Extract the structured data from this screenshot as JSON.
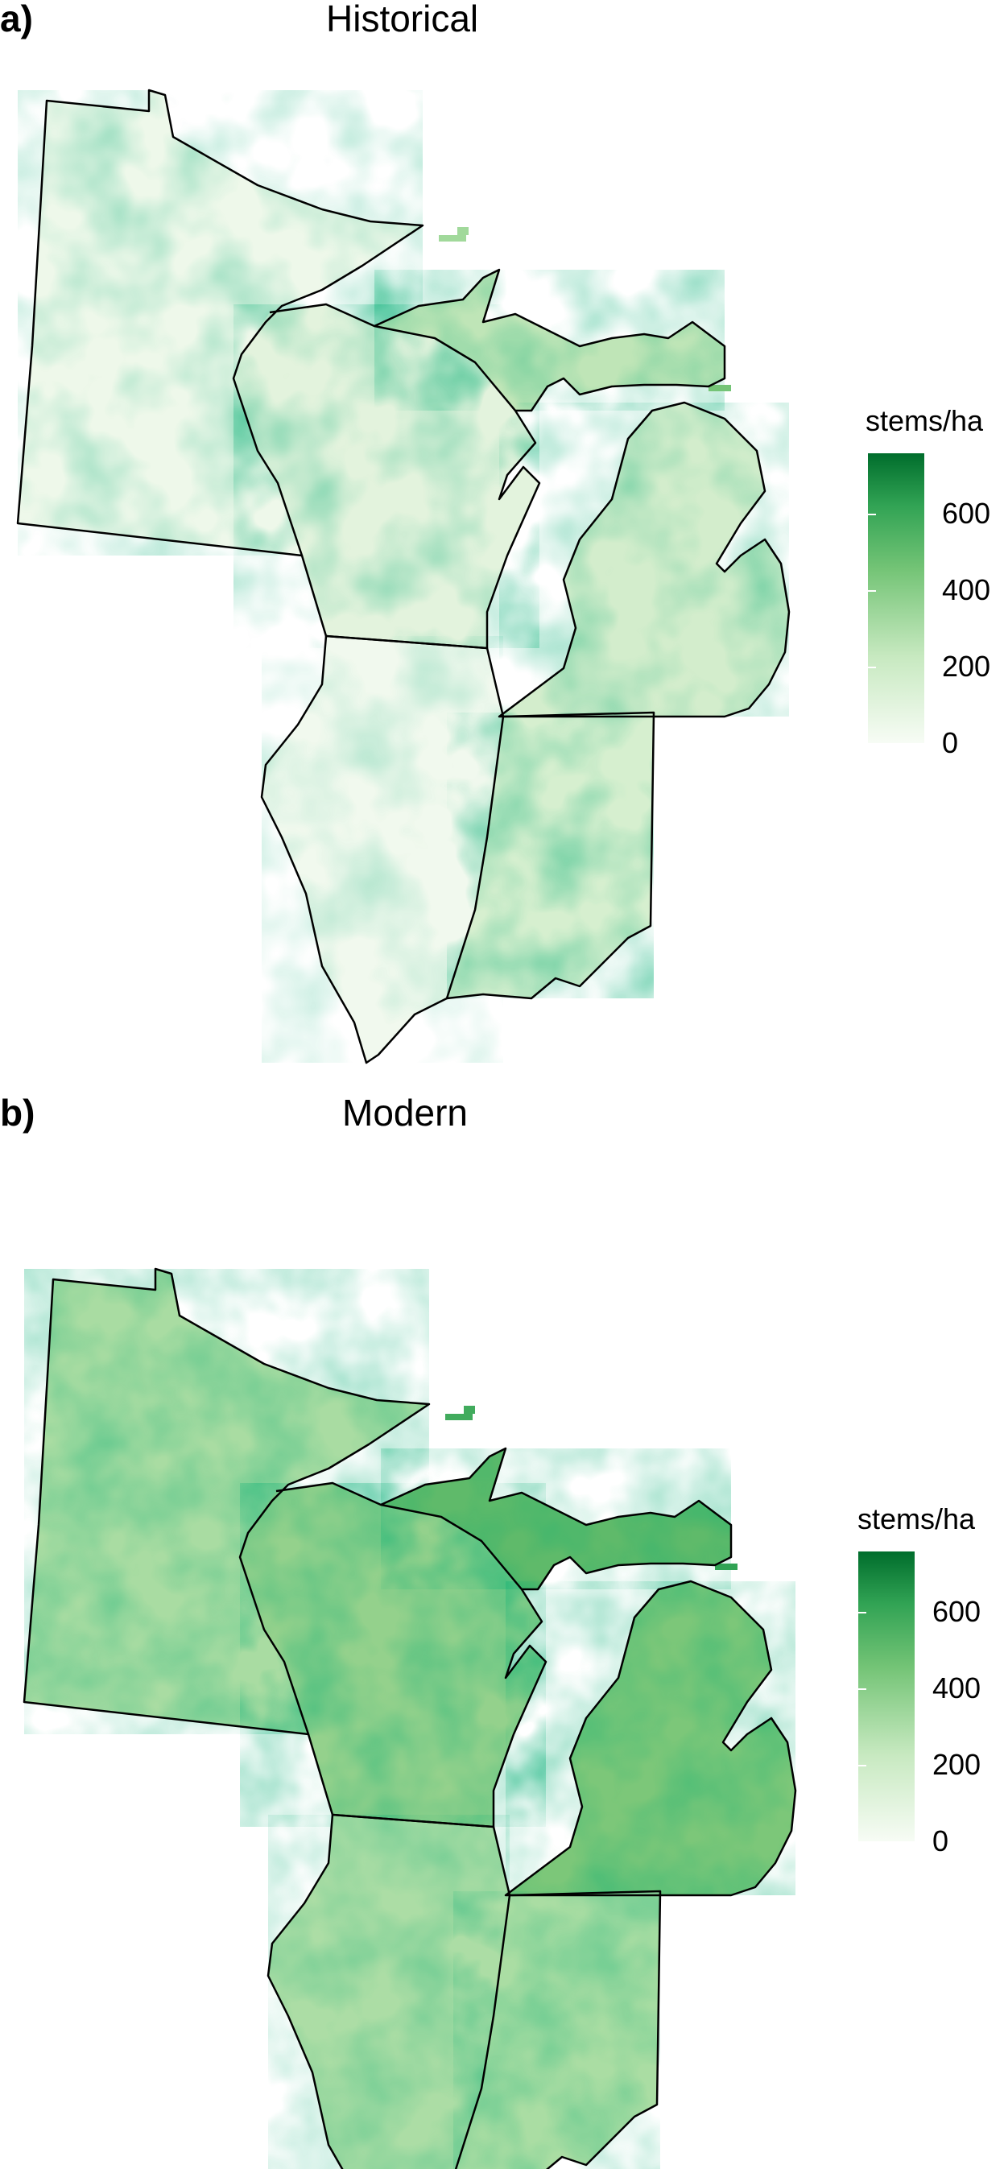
{
  "panels": [
    {
      "label": "a)",
      "title": "Historical",
      "legend": {
        "title": "stems/ha",
        "ticks": [
          "0",
          "200",
          "400",
          "600"
        ]
      }
    },
    {
      "label": "b)",
      "title": "Modern",
      "legend": {
        "title": "stems/ha",
        "ticks": [
          "0",
          "200",
          "400",
          "600"
        ]
      }
    }
  ],
  "colors": {
    "scale_low": "#f7fcf5",
    "scale_mid": "#74c476",
    "scale_high": "#006d2c",
    "outline": "#000000"
  }
}
